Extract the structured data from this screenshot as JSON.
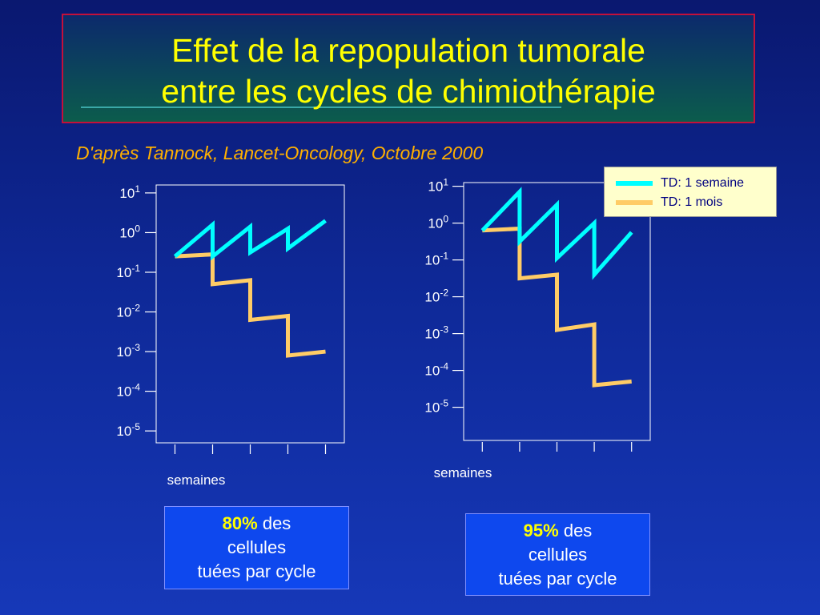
{
  "title": {
    "line1": "Effet de la repopulation tumorale",
    "line2": "entre les cycles de chimiothérapie"
  },
  "citation": "D'après Tannock, Lancet-Oncology, Octobre 2000",
  "legend": [
    {
      "label": "TD: 1 semaine",
      "color": "#00ffff"
    },
    {
      "label": "TD: 1 mois",
      "color": "#ffcc66"
    }
  ],
  "boxes": [
    {
      "pct": "80%",
      "line1_rest": " des",
      "line2": "cellules",
      "line3": "tuées par cycle"
    },
    {
      "pct": "95%",
      "line1_rest": " des",
      "line2": "cellules",
      "line3": "tuées par cycle"
    }
  ],
  "chart_data": [
    {
      "type": "line",
      "xlabel": "semaines",
      "ylabel": "",
      "yscale": "log",
      "y_ticks": [
        {
          "base": "10",
          "exp": "1",
          "value": 10
        },
        {
          "base": "10",
          "exp": "0",
          "value": 1
        },
        {
          "base": "10",
          "exp": "-1",
          "value": 0.1
        },
        {
          "base": "10",
          "exp": "-2",
          "value": 0.01
        },
        {
          "base": "10",
          "exp": "-3",
          "value": 0.001
        },
        {
          "base": "10",
          "exp": "-4",
          "value": 0.0001
        },
        {
          "base": "10",
          "exp": "-5",
          "value": 1e-05
        }
      ],
      "ylim_log10": [
        -5.3,
        1.2
      ],
      "x_ticks": [
        0,
        1,
        2,
        3,
        4
      ],
      "xlim": [
        -0.5,
        4.5
      ],
      "series": [
        {
          "name": "TD: 1 semaine",
          "color": "#00ffff",
          "points": [
            [
              0,
              -0.6
            ],
            [
              1,
              0.2
            ],
            [
              1,
              -0.6
            ],
            [
              2,
              0.15
            ],
            [
              2,
              -0.5
            ],
            [
              3,
              0.1
            ],
            [
              3,
              -0.4
            ],
            [
              4,
              0.3
            ]
          ]
        },
        {
          "name": "TD: 1 mois",
          "color": "#ffcc66",
          "points": [
            [
              0,
              -0.6
            ],
            [
              1,
              -0.55
            ],
            [
              1,
              -1.3
            ],
            [
              2,
              -1.2
            ],
            [
              2,
              -2.2
            ],
            [
              3,
              -2.1
            ],
            [
              3,
              -3.1
            ],
            [
              4,
              -3.0
            ]
          ]
        }
      ]
    },
    {
      "type": "line",
      "xlabel": "semaines",
      "ylabel": "",
      "yscale": "log",
      "y_ticks": [
        {
          "base": "10",
          "exp": "1",
          "value": 10
        },
        {
          "base": "10",
          "exp": "0",
          "value": 1
        },
        {
          "base": "10",
          "exp": "-1",
          "value": 0.1
        },
        {
          "base": "10",
          "exp": "-2",
          "value": 0.01
        },
        {
          "base": "10",
          "exp": "-3",
          "value": 0.001
        },
        {
          "base": "10",
          "exp": "-4",
          "value": 0.0001
        },
        {
          "base": "10",
          "exp": "-5",
          "value": 1e-05
        }
      ],
      "ylim_log10": [
        -5.9,
        1.1
      ],
      "x_ticks": [
        0,
        1,
        2,
        3,
        4
      ],
      "xlim": [
        -0.5,
        4.5
      ],
      "series": [
        {
          "name": "TD: 1 semaine",
          "color": "#00ffff",
          "points": [
            [
              0,
              -0.2
            ],
            [
              1,
              0.85
            ],
            [
              1,
              -0.5
            ],
            [
              2,
              0.5
            ],
            [
              2,
              -0.95
            ],
            [
              3,
              0.0
            ],
            [
              3,
              -1.4
            ],
            [
              4,
              -0.25
            ]
          ]
        },
        {
          "name": "TD: 1 mois",
          "color": "#ffcc66",
          "points": [
            [
              0,
              -0.2
            ],
            [
              1,
              -0.15
            ],
            [
              1,
              -1.5
            ],
            [
              2,
              -1.4
            ],
            [
              2,
              -2.9
            ],
            [
              3,
              -2.75
            ],
            [
              3,
              -4.4
            ],
            [
              4,
              -4.3
            ]
          ]
        }
      ]
    }
  ]
}
